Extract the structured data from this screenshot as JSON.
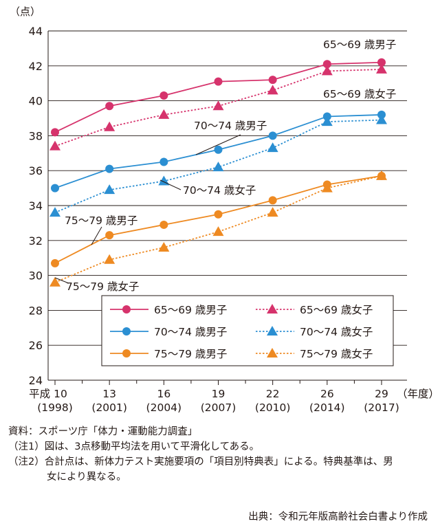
{
  "chart_data": {
    "type": "line",
    "y_unit": "（点）",
    "x_unit": "（年度）",
    "ylim": [
      24,
      44
    ],
    "yticks": [
      24,
      26,
      28,
      30,
      32,
      34,
      36,
      38,
      40,
      42,
      44
    ],
    "grid": true,
    "categories": [
      {
        "era": "平成 10",
        "year": "(1998)"
      },
      {
        "era": "13",
        "year": "(2001)"
      },
      {
        "era": "16",
        "year": "(2004)"
      },
      {
        "era": "19",
        "year": "(2007)"
      },
      {
        "era": "22",
        "year": "(2010)"
      },
      {
        "era": "26",
        "year": "(2014)"
      },
      {
        "era": "29",
        "year": "(2017)"
      }
    ],
    "series": [
      {
        "name": "65～69 歳男子",
        "color": "#d6336c",
        "marker": "circle",
        "dash": "solid",
        "values": [
          38.2,
          39.7,
          40.3,
          41.1,
          41.2,
          42.1,
          42.2
        ]
      },
      {
        "name": "65～69 歳女子",
        "color": "#d6336c",
        "marker": "triangle",
        "dash": "dotted",
        "values": [
          37.4,
          38.5,
          39.2,
          39.7,
          40.6,
          41.7,
          41.8
        ]
      },
      {
        "name": "70～74 歳男子",
        "color": "#2b8fd2",
        "marker": "circle",
        "dash": "solid",
        "values": [
          35.0,
          36.1,
          36.5,
          37.2,
          38.0,
          39.1,
          39.2
        ]
      },
      {
        "name": "70～74 歳女子",
        "color": "#2b8fd2",
        "marker": "triangle",
        "dash": "dotted",
        "values": [
          33.6,
          34.9,
          35.4,
          36.2,
          37.3,
          38.8,
          38.9
        ]
      },
      {
        "name": "75～79 歳男子",
        "color": "#ee8a22",
        "marker": "circle",
        "dash": "solid",
        "values": [
          30.7,
          32.3,
          32.9,
          33.5,
          34.3,
          35.2,
          35.7
        ]
      },
      {
        "name": "75～79 歳女子",
        "color": "#ee8a22",
        "marker": "triangle",
        "dash": "dotted",
        "values": [
          29.6,
          30.9,
          31.6,
          32.5,
          33.6,
          35.0,
          35.7
        ]
      }
    ],
    "annotations": [
      "65～69 歳男子",
      "65～69 歳女子",
      "70～74 歳男子",
      "70～74 歳女子",
      "75～79 歳男子",
      "75～79 歳女子"
    ],
    "legend_position": "bottom-right"
  },
  "notes": {
    "source_line": "資料：スポーツ庁「体力・運動能力調査」",
    "note1": "（注1）図は、3点移動平均法を用いて平滑化してある。",
    "note2_a": "（注2）合計点は、新体力テスト実施要項の「項目別特典表」による。特典基準は、男",
    "note2_b": "女により異なる。",
    "credit": "出典：令和元年版高齢社会白書より作成"
  }
}
